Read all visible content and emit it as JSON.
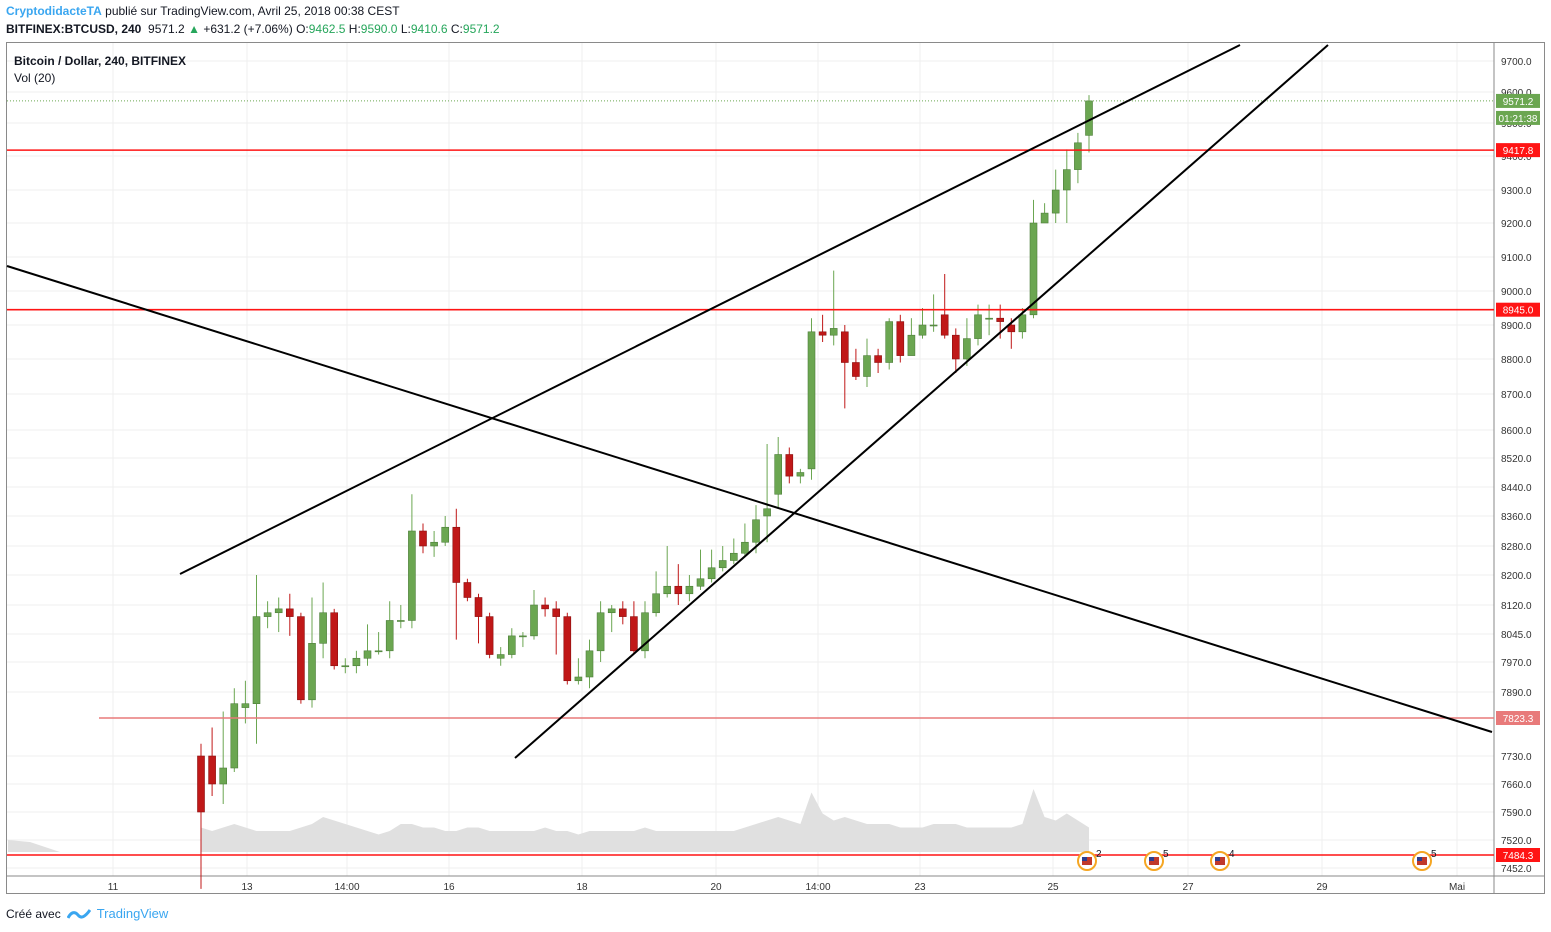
{
  "header": {
    "author": "CryptodidacteTA",
    "published": "publié sur TradingView.com, Avril 25, 2018 00:38 CEST",
    "symbol": "BITFINEX:BTCUSD, 240",
    "last": "9571.2",
    "change": "+631.2 (+7.06%)",
    "o_label": "O:",
    "o_value": "9462.5",
    "h_label": "H:",
    "h_value": "9590.0",
    "l_label": "L:",
    "l_value": "9410.6",
    "c_label": "C:",
    "c_value": "9571.2"
  },
  "legend": {
    "title": "Bitcoin / Dollar, 240, BITFINEX",
    "volume": "Vol (20)"
  },
  "footer": {
    "created_with": "Créé avec",
    "brand": "TradingView",
    "brand_icon": "tradingview-logo-icon"
  },
  "colors": {
    "up": "#6ba651",
    "down": "#c01818",
    "level": "#ff1414",
    "level_faint": "#e87a7a",
    "trendline": "#000000",
    "volume": "#e0e0e0",
    "price_tag": "#6ba651",
    "grid": "#efefef"
  },
  "chart_data": {
    "type": "candlestick",
    "timeframe_minutes": 240,
    "x_ticks": [
      "11",
      "13",
      "14:00",
      "16",
      "18",
      "20",
      "14:00",
      "23",
      "25",
      "27",
      "29",
      "Mai"
    ],
    "y_ticks": [
      9700.0,
      9600.0,
      9500.0,
      9400.0,
      9300.0,
      9200.0,
      9100.0,
      9000.0,
      8900.0,
      8800.0,
      8700.0,
      8600.0,
      8520.0,
      8440.0,
      8360.0,
      8280.0,
      8200.0,
      8120.0,
      8045.0,
      7970.0,
      7890.0,
      7823.3,
      7730.0,
      7660.0,
      7590.0,
      7520.0,
      7452.0
    ],
    "ylim": [
      7430,
      9740
    ],
    "candles": [
      [
        7730,
        7590,
        7760,
        7400
      ],
      [
        7730,
        7660,
        7800,
        7630
      ],
      [
        7660,
        7700,
        7840,
        7610
      ],
      [
        7700,
        7860,
        7900,
        7690
      ],
      [
        7850,
        7860,
        7920,
        7810
      ],
      [
        7860,
        8090,
        8200,
        7760
      ],
      [
        8090,
        8100,
        8130,
        8060
      ],
      [
        8100,
        8110,
        8140,
        8050
      ],
      [
        8110,
        8090,
        8150,
        8040
      ],
      [
        8090,
        7870,
        8100,
        7860
      ],
      [
        7870,
        8020,
        8140,
        7850
      ],
      [
        8020,
        8100,
        8180,
        7980
      ],
      [
        8100,
        7960,
        8110,
        7950
      ],
      [
        7960,
        7960,
        7980,
        7940
      ],
      [
        7960,
        7980,
        8000,
        7940
      ],
      [
        7980,
        8000,
        8070,
        7960
      ],
      [
        8000,
        8000,
        8050,
        7990
      ],
      [
        8000,
        8080,
        8130,
        7980
      ],
      [
        8080,
        8080,
        8120,
        8060
      ],
      [
        8080,
        8320,
        8420,
        8060
      ],
      [
        8320,
        8280,
        8340,
        8260
      ],
      [
        8280,
        8290,
        8320,
        8250
      ],
      [
        8290,
        8330,
        8360,
        8280
      ],
      [
        8330,
        8180,
        8380,
        8030
      ],
      [
        8180,
        8140,
        8190,
        8130
      ],
      [
        8140,
        8090,
        8150,
        8020
      ],
      [
        8090,
        7990,
        8100,
        7980
      ],
      [
        7980,
        7990,
        8010,
        7960
      ],
      [
        7990,
        8040,
        8060,
        7980
      ],
      [
        8040,
        8040,
        8050,
        8010
      ],
      [
        8040,
        8120,
        8160,
        8030
      ],
      [
        8120,
        8110,
        8140,
        8090
      ],
      [
        8110,
        8090,
        8130,
        7990
      ],
      [
        8090,
        7920,
        8100,
        7910
      ],
      [
        7920,
        7930,
        7980,
        7910
      ],
      [
        7930,
        8000,
        8030,
        7900
      ],
      [
        8000,
        8100,
        8130,
        7970
      ],
      [
        8100,
        8110,
        8120,
        8050
      ],
      [
        8110,
        8090,
        8130,
        8070
      ],
      [
        8090,
        8000,
        8130,
        7990
      ],
      [
        8000,
        8100,
        8130,
        7980
      ],
      [
        8100,
        8150,
        8210,
        8090
      ],
      [
        8150,
        8170,
        8280,
        8140
      ],
      [
        8170,
        8150,
        8230,
        8120
      ],
      [
        8150,
        8170,
        8200,
        8130
      ],
      [
        8170,
        8190,
        8270,
        8160
      ],
      [
        8190,
        8220,
        8270,
        8180
      ],
      [
        8220,
        8240,
        8280,
        8210
      ],
      [
        8240,
        8260,
        8300,
        8230
      ],
      [
        8260,
        8290,
        8340,
        8250
      ],
      [
        8290,
        8350,
        8390,
        8260
      ],
      [
        8360,
        8380,
        8560,
        8290
      ],
      [
        8420,
        8530,
        8580,
        8380
      ],
      [
        8530,
        8470,
        8550,
        8450
      ],
      [
        8470,
        8480,
        8490,
        8450
      ],
      [
        8490,
        8880,
        8920,
        8460
      ],
      [
        8880,
        8870,
        8930,
        8850
      ],
      [
        8870,
        8890,
        9060,
        8840
      ],
      [
        8880,
        8790,
        8900,
        8660
      ],
      [
        8790,
        8750,
        8830,
        8740
      ],
      [
        8750,
        8810,
        8860,
        8720
      ],
      [
        8810,
        8790,
        8830,
        8760
      ],
      [
        8790,
        8910,
        8920,
        8770
      ],
      [
        8910,
        8810,
        8930,
        8790
      ],
      [
        8810,
        8870,
        8920,
        8820
      ],
      [
        8870,
        8900,
        8950,
        8860
      ],
      [
        8900,
        8900,
        8990,
        8880
      ],
      [
        8930,
        8870,
        9050,
        8860
      ],
      [
        8870,
        8800,
        8890,
        8760
      ],
      [
        8800,
        8860,
        8920,
        8780
      ],
      [
        8860,
        8930,
        8960,
        8840
      ],
      [
        8920,
        8920,
        8960,
        8870
      ],
      [
        8920,
        8910,
        8960,
        8860
      ],
      [
        8900,
        8880,
        8920,
        8830
      ],
      [
        8880,
        8930,
        8950,
        8860
      ],
      [
        8930,
        9200,
        9270,
        8920
      ],
      [
        9200,
        9230,
        9260,
        9200
      ],
      [
        9230,
        9300,
        9360,
        9200
      ],
      [
        9300,
        9360,
        9420,
        9200
      ],
      [
        9360,
        9440,
        9470,
        9320
      ],
      [
        9462.5,
        9571.2,
        9590,
        9410.6
      ]
    ],
    "volume": [
      0.35,
      0.3,
      0.35,
      0.4,
      0.35,
      0.3,
      0.3,
      0.3,
      0.3,
      0.35,
      0.4,
      0.5,
      0.45,
      0.4,
      0.35,
      0.3,
      0.25,
      0.3,
      0.4,
      0.4,
      0.35,
      0.35,
      0.3,
      0.3,
      0.35,
      0.35,
      0.3,
      0.3,
      0.3,
      0.3,
      0.3,
      0.35,
      0.3,
      0.3,
      0.25,
      0.3,
      0.3,
      0.3,
      0.3,
      0.3,
      0.35,
      0.3,
      0.3,
      0.3,
      0.3,
      0.3,
      0.3,
      0.3,
      0.3,
      0.35,
      0.4,
      0.45,
      0.5,
      0.45,
      0.4,
      0.85,
      0.55,
      0.45,
      0.5,
      0.45,
      0.4,
      0.4,
      0.4,
      0.35,
      0.35,
      0.35,
      0.4,
      0.4,
      0.4,
      0.35,
      0.35,
      0.35,
      0.35,
      0.35,
      0.4,
      0.9,
      0.5,
      0.45,
      0.55,
      0.45,
      0.35
    ],
    "horizontal_levels": [
      {
        "value": 9571.2,
        "label": "9571.2",
        "style": "dotted-green"
      },
      {
        "value": 9417.8,
        "label": "9417.8",
        "style": "red"
      },
      {
        "value": 8945.0,
        "label": "8945.0",
        "style": "red"
      },
      {
        "value": 7823.3,
        "label": "7823.3",
        "style": "red-faint"
      },
      {
        "value": 7484.3,
        "label": "7484.3",
        "style": "red"
      }
    ],
    "countdown": "01:21:38",
    "events": [
      {
        "icon": "us-flag-event-icon",
        "count": "2"
      },
      {
        "icon": "us-flag-event-icon",
        "count": "5"
      },
      {
        "icon": "us-flag-event-icon",
        "count": "4"
      },
      {
        "icon": "us-flag-event-icon",
        "count": "5"
      }
    ]
  }
}
